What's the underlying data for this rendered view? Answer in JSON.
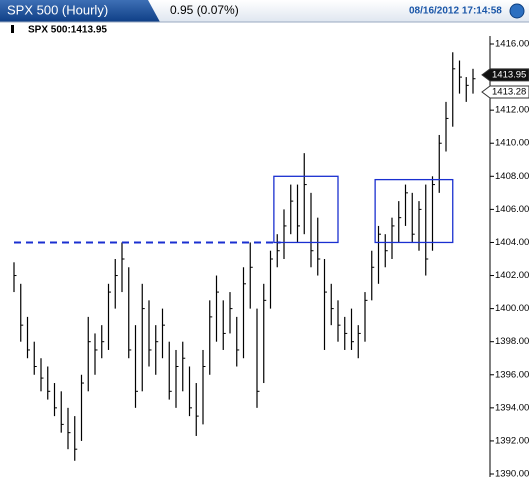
{
  "header": {
    "title": "SPX 500 (Hourly)",
    "change": "0.95 (0.07%)",
    "timestamp": "08/16/2012 17:14:58"
  },
  "chart_data": {
    "type": "ohlc",
    "label": "SPX 500:1413.95",
    "color": "#000000",
    "high": [
      1402.8,
      1401.5,
      1399.5,
      1398.0,
      1397.0,
      1396.5,
      1395.5,
      1395.0,
      1394.0,
      1393.5,
      1396.0,
      1399.5,
      1398.5,
      1399.0,
      1401.5,
      1403.0,
      1404.0,
      1402.5,
      1399.0,
      1401.5,
      1400.5,
      1399.0,
      1400.0,
      1398.0,
      1397.5,
      1398.0,
      1396.5,
      1395.5,
      1397.5,
      1400.5,
      1402.0,
      1400.5,
      1401.0,
      1399.5,
      1402.5,
      1404.0,
      1400.0,
      1401.5,
      1403.5,
      1404.5,
      1406.0,
      1407.5,
      1407.5,
      1409.4,
      1407.0,
      1405.5,
      1403.0,
      1401.5,
      1400.5,
      1399.5,
      1400.0,
      1399.0,
      1401.0,
      1403.5,
      1405.0,
      1404.5,
      1405.5,
      1406.5,
      1407.5,
      1407.0,
      1406.5,
      1407.5,
      1408.0,
      1410.5,
      1412.5,
      1415.5,
      1415.0,
      1414.0,
      1414.5
    ],
    "low": [
      1401.0,
      1398.0,
      1397.0,
      1396.0,
      1395.0,
      1394.5,
      1393.5,
      1392.5,
      1391.5,
      1390.8,
      1392.0,
      1395.0,
      1396.0,
      1397.0,
      1397.5,
      1400.0,
      1401.0,
      1397.0,
      1394.0,
      1395.0,
      1396.5,
      1396.0,
      1397.0,
      1394.5,
      1394.0,
      1395.0,
      1393.5,
      1392.3,
      1393.0,
      1396.0,
      1398.0,
      1397.5,
      1398.5,
      1396.5,
      1397.0,
      1400.0,
      1394.0,
      1395.5,
      1400.0,
      1402.5,
      1403.0,
      1404.5,
      1404.0,
      1404.5,
      1402.5,
      1402.0,
      1397.5,
      1399.0,
      1398.0,
      1397.5,
      1397.5,
      1397.0,
      1398.0,
      1400.5,
      1401.5,
      1402.5,
      1403.0,
      1404.0,
      1405.0,
      1404.0,
      1403.5,
      1402.0,
      1403.5,
      1407.0,
      1409.5,
      1411.0,
      1413.0,
      1412.5,
      1413.0
    ],
    "close": [
      1402.0,
      1399.0,
      1397.5,
      1396.5,
      1395.8,
      1395.0,
      1394.0,
      1393.0,
      1392.5,
      1391.5,
      1395.5,
      1398.0,
      1397.5,
      1398.0,
      1401.0,
      1402.0,
      1403.0,
      1397.5,
      1395.0,
      1400.0,
      1397.5,
      1398.0,
      1399.0,
      1395.0,
      1396.5,
      1397.0,
      1394.0,
      1393.5,
      1396.5,
      1399.5,
      1401.0,
      1398.5,
      1400.0,
      1397.5,
      1401.5,
      1402.5,
      1395.0,
      1400.5,
      1403.0,
      1403.5,
      1405.0,
      1406.5,
      1405.0,
      1407.5,
      1403.5,
      1403.0,
      1401.0,
      1400.0,
      1399.0,
      1398.5,
      1398.0,
      1398.5,
      1400.5,
      1402.5,
      1404.5,
      1403.5,
      1405.0,
      1405.5,
      1407.0,
      1404.5,
      1406.0,
      1403.0,
      1407.5,
      1410.0,
      1411.5,
      1414.5,
      1414.0,
      1413.5,
      1413.9
    ],
    "ylim": [
      1390,
      1416
    ],
    "yticks": [
      {
        "value": 1390,
        "label": "1390.00"
      },
      {
        "value": 1392,
        "label": "1392.00"
      },
      {
        "value": 1394,
        "label": "1394.00"
      },
      {
        "value": 1396,
        "label": "1396.00"
      },
      {
        "value": 1398,
        "label": "1398.00"
      },
      {
        "value": 1400,
        "label": "1400.00"
      },
      {
        "value": 1402,
        "label": "1402.00"
      },
      {
        "value": 1404,
        "label": "1404.00"
      },
      {
        "value": 1406,
        "label": "1406.00"
      },
      {
        "value": 1408,
        "label": "1408.00"
      },
      {
        "value": 1410,
        "label": "1410.00"
      },
      {
        "value": 1412,
        "label": "1412.00"
      },
      {
        "value": 1414,
        "label": "1414.00"
      },
      {
        "value": 1416,
        "label": "1416.00"
      }
    ],
    "price_tags": [
      1413.95,
      1413.28
    ],
    "level_line": {
      "value": 1404,
      "from": 0,
      "to": 39.5,
      "color": "#1a2fd0"
    },
    "boxes": [
      {
        "from": 38.5,
        "to": 48,
        "low": 1404,
        "high": 1408,
        "color": "#1a2fd0"
      },
      {
        "from": 53.5,
        "to": 65,
        "low": 1404,
        "high": 1407.8,
        "color": "#1a2fd0"
      }
    ]
  }
}
